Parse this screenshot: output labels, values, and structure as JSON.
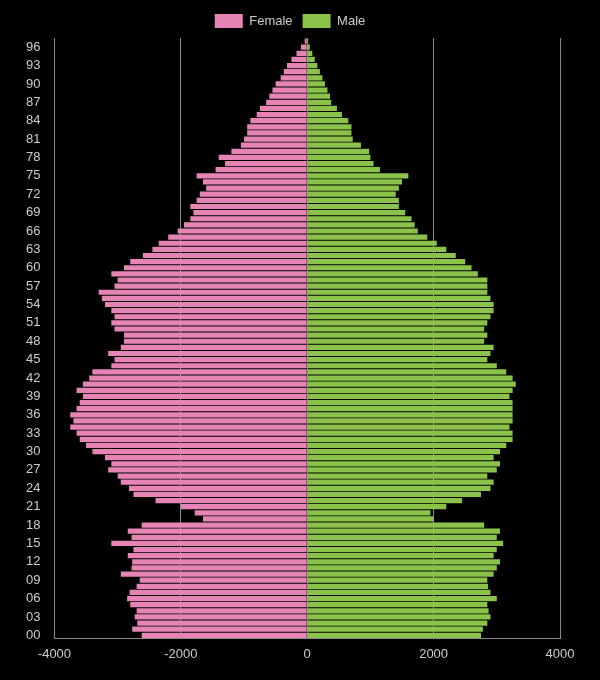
{
  "chart_data": {
    "type": "bar",
    "orientation": "horizontal",
    "stacked": true,
    "grid": true,
    "legend": "top",
    "categories": [
      "00",
      null,
      null,
      "03",
      null,
      null,
      "06",
      null,
      null,
      "09",
      null,
      null,
      "12",
      null,
      null,
      "15",
      null,
      null,
      "18",
      null,
      null,
      "21",
      null,
      null,
      "24",
      null,
      null,
      "27",
      null,
      null,
      "30",
      null,
      null,
      "33",
      null,
      null,
      "36",
      null,
      null,
      "39",
      null,
      null,
      "42",
      null,
      null,
      "45",
      null,
      null,
      "48",
      null,
      null,
      "51",
      null,
      null,
      "54",
      null,
      null,
      "57",
      null,
      null,
      "60",
      null,
      null,
      "63",
      null,
      null,
      "66",
      null,
      null,
      "69",
      null,
      null,
      "72",
      null,
      null,
      "75",
      null,
      null,
      "78",
      null,
      null,
      "81",
      null,
      null,
      "84",
      null,
      null,
      "87",
      null,
      null,
      "90",
      null,
      null,
      "93",
      null,
      null,
      "96",
      null
    ],
    "xlim": [
      -4000,
      4000
    ],
    "xticks": [
      -4000,
      -2000,
      0,
      2000,
      4000
    ],
    "series": [
      {
        "name": "Female",
        "color": "#e685b5",
        "values": [
          -2620,
          -2770,
          -2690,
          -2730,
          -2700,
          -2800,
          -2850,
          -2810,
          -2700,
          -2650,
          -2950,
          -2780,
          -2770,
          -2840,
          -2750,
          -3100,
          -2780,
          -2840,
          -2620,
          -1650,
          -1780,
          -2000,
          -2400,
          -2750,
          -2820,
          -2950,
          -3000,
          -3150,
          -3100,
          -3200,
          -3400,
          -3500,
          -3600,
          -3650,
          -3750,
          -3700,
          -3750,
          -3650,
          -3600,
          -3550,
          -3650,
          -3550,
          -3450,
          -3400,
          -3100,
          -3050,
          -3150,
          -2950,
          -2900,
          -2900,
          -3050,
          -3100,
          -3050,
          -3100,
          -3200,
          -3250,
          -3300,
          -3050,
          -3000,
          -3100,
          -2900,
          -2800,
          -2600,
          -2450,
          -2350,
          -2200,
          -2050,
          -1950,
          -1850,
          -1800,
          -1850,
          -1750,
          -1700,
          -1600,
          -1650,
          -1750,
          -1450,
          -1300,
          -1400,
          -1200,
          -1050,
          -1000,
          -950,
          -950,
          -900,
          -800,
          -750,
          -650,
          -600,
          -550,
          -500,
          -420,
          -370,
          -320,
          -250,
          -170,
          -100,
          -40
        ]
      },
      {
        "name": "Male",
        "color": "#8bc34a",
        "values": [
          2750,
          2780,
          2850,
          2900,
          2870,
          2850,
          3000,
          2900,
          2860,
          2850,
          2950,
          3000,
          3050,
          2950,
          3000,
          3100,
          3000,
          3050,
          2800,
          2000,
          1950,
          2200,
          2450,
          2750,
          2900,
          2950,
          2850,
          3000,
          3050,
          2950,
          3050,
          3150,
          3250,
          3250,
          3200,
          3250,
          3250,
          3250,
          3250,
          3200,
          3250,
          3300,
          3250,
          3150,
          3000,
          2850,
          2900,
          2950,
          2800,
          2850,
          2800,
          2850,
          2900,
          2950,
          2950,
          2900,
          2850,
          2850,
          2850,
          2700,
          2600,
          2500,
          2350,
          2200,
          2050,
          1900,
          1750,
          1700,
          1650,
          1550,
          1450,
          1450,
          1400,
          1450,
          1500,
          1600,
          1150,
          1050,
          1000,
          980,
          850,
          720,
          700,
          700,
          650,
          550,
          470,
          380,
          360,
          320,
          280,
          240,
          200,
          160,
          120,
          80,
          40,
          15
        ]
      }
    ]
  }
}
